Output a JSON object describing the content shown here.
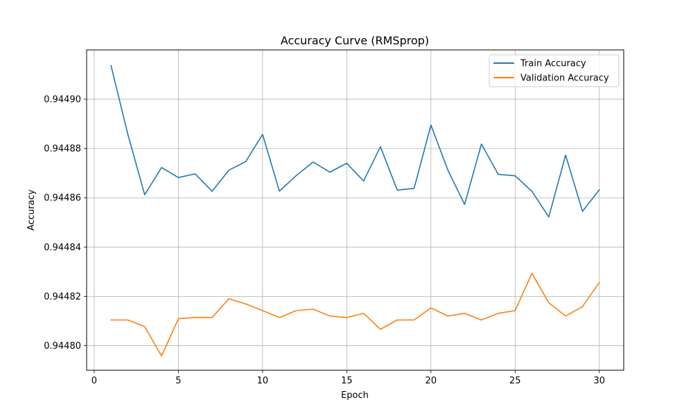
{
  "chart_data": {
    "type": "line",
    "title": "Accuracy Curve (RMSprop)",
    "xlabel": "Epoch",
    "ylabel": "Accuracy",
    "xlim": [
      -0.45,
      31.45
    ],
    "ylim": [
      0.94479,
      0.94492
    ],
    "xticks": [
      0,
      5,
      10,
      15,
      20,
      25,
      30
    ],
    "yticks": [
      0.9448,
      0.94482,
      0.94484,
      0.94486,
      0.94488,
      0.9449
    ],
    "ytick_labels": [
      "0.94480",
      "0.94482",
      "0.94484",
      "0.94486",
      "0.94488",
      "0.94490"
    ],
    "grid": true,
    "legend_position": "top-right",
    "x": [
      1,
      2,
      3,
      4,
      5,
      6,
      7,
      8,
      9,
      10,
      11,
      12,
      13,
      14,
      15,
      16,
      17,
      18,
      19,
      20,
      21,
      22,
      23,
      24,
      25,
      26,
      27,
      28,
      29,
      30
    ],
    "series": [
      {
        "name": "Train Accuracy",
        "color": "#1f77b4",
        "values": [
          0.9449136,
          0.9448857,
          0.9448612,
          0.9448723,
          0.9448682,
          0.9448697,
          0.9448626,
          0.9448712,
          0.9448747,
          0.9448857,
          0.9448627,
          0.944869,
          0.9448745,
          0.9448704,
          0.944874,
          0.9448668,
          0.9448807,
          0.9448631,
          0.9448638,
          0.9448895,
          0.9448713,
          0.9448573,
          0.9448818,
          0.9448695,
          0.9448689,
          0.9448626,
          0.9448522,
          0.9448773,
          0.9448545,
          0.9448632
        ]
      },
      {
        "name": "Validation Accuracy",
        "color": "#ff7f0e",
        "values": [
          0.9448104,
          0.9448104,
          0.9448077,
          0.9447958,
          0.9448109,
          0.9448114,
          0.9448114,
          0.944819,
          0.9448169,
          0.9448142,
          0.9448114,
          0.9448142,
          0.9448148,
          0.944812,
          0.9448114,
          0.9448131,
          0.9448066,
          0.9448104,
          0.9448104,
          0.9448153,
          0.944812,
          0.9448131,
          0.9448104,
          0.9448131,
          0.9448142,
          0.9448293,
          0.9448174,
          0.944812,
          0.9448158,
          0.9448256
        ]
      }
    ]
  }
}
